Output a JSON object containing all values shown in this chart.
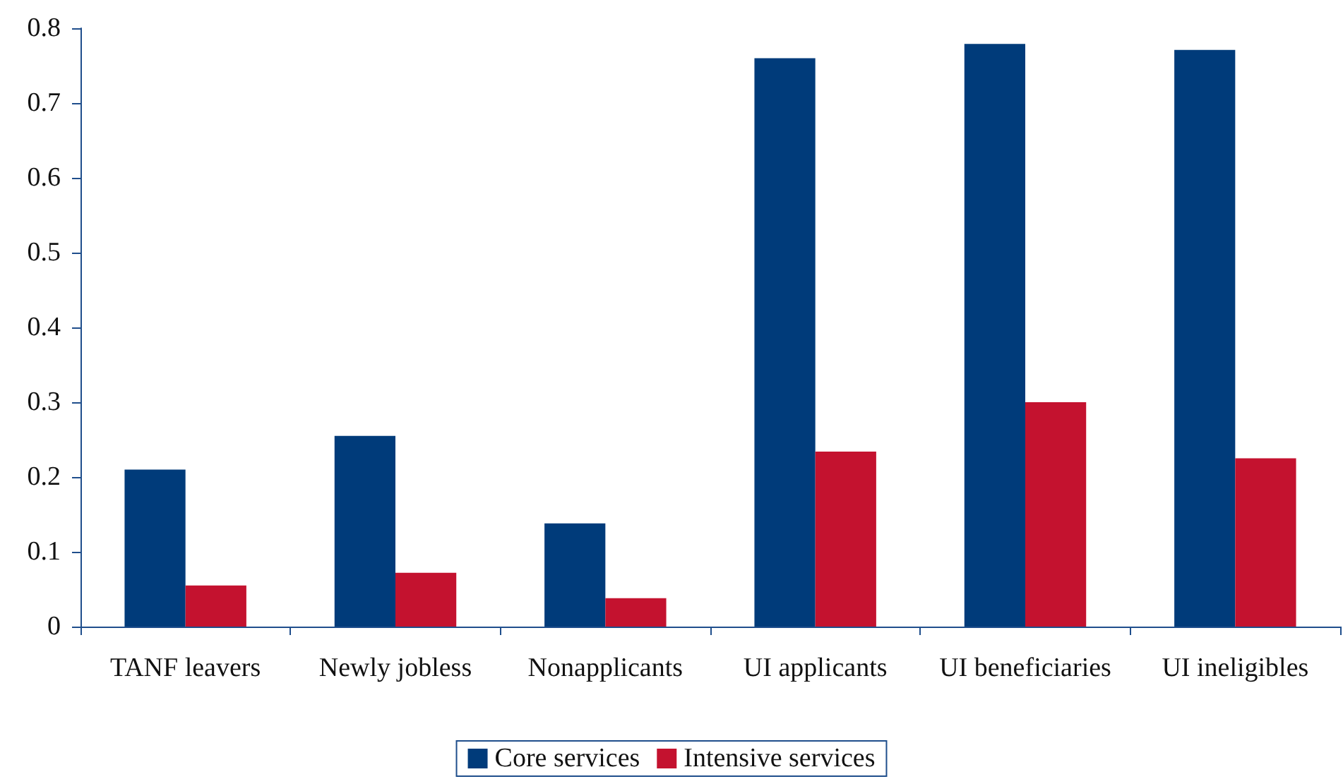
{
  "chart_data": {
    "type": "bar",
    "categories": [
      "TANF leavers",
      "Newly jobless",
      "Nonapplicants",
      "UI applicants",
      "UI beneficiaries",
      "UI ineligibles"
    ],
    "series": [
      {
        "name": "Core services",
        "color": "#003b7a",
        "values": [
          0.21,
          0.255,
          0.138,
          0.76,
          0.779,
          0.771
        ]
      },
      {
        "name": "Intensive services",
        "color": "#c4122f",
        "values": [
          0.055,
          0.072,
          0.038,
          0.234,
          0.3,
          0.225
        ]
      }
    ],
    "ylim": [
      0,
      0.8
    ],
    "yticks": [
      0,
      0.1,
      0.2,
      0.3,
      0.4,
      0.5,
      0.6,
      0.7,
      0.8
    ],
    "grid": false,
    "legend": "bottom"
  }
}
